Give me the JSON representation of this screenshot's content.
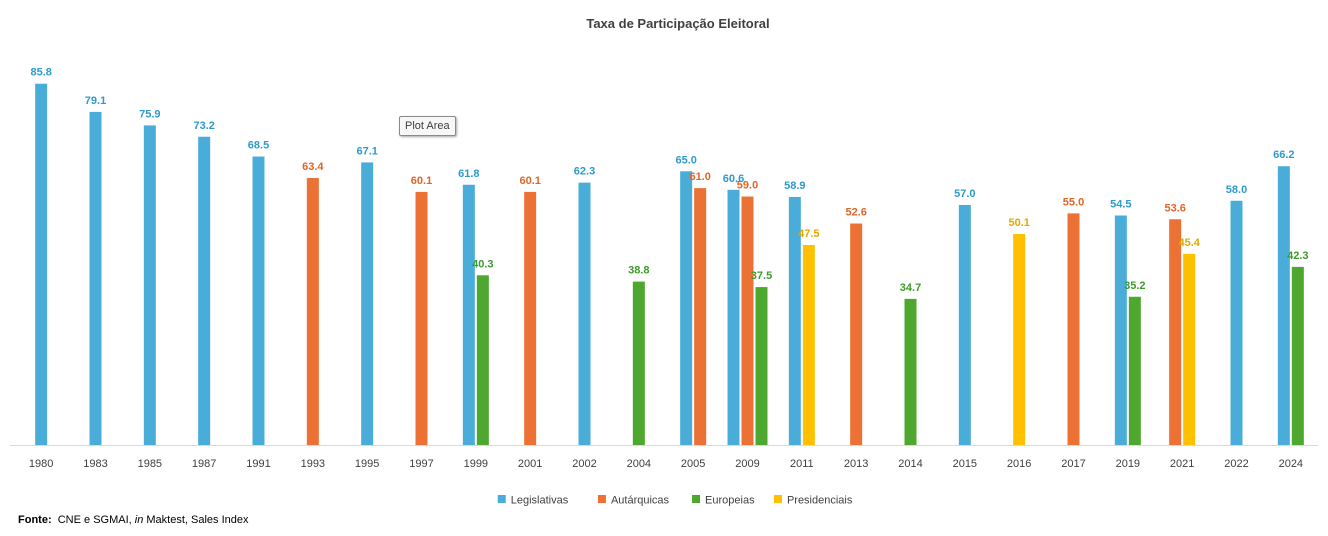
{
  "chart_data": {
    "type": "bar",
    "title": "Taxa de Participação Eleitoral",
    "xlabel": "",
    "ylabel": "",
    "ylim": [
      0,
      90
    ],
    "grid": false,
    "legend_position": "bottom-center",
    "categories": [
      "1980",
      "1983",
      "1985",
      "1987",
      "1991",
      "1993",
      "1995",
      "1997",
      "1999",
      "2001",
      "2002",
      "2004",
      "2005",
      "2009",
      "2011",
      "2013",
      "2014",
      "2015",
      "2016",
      "2017",
      "2019",
      "2021",
      "2022",
      "2024"
    ],
    "series": [
      {
        "name": "Legislativas",
        "color": "#4AADD9",
        "values": [
          85.8,
          79.1,
          75.9,
          73.2,
          68.5,
          null,
          67.1,
          null,
          61.8,
          null,
          62.3,
          null,
          65.0,
          60.6,
          58.9,
          null,
          null,
          57.0,
          null,
          null,
          54.5,
          null,
          58.0,
          66.2
        ]
      },
      {
        "name": "Autárquicas",
        "color": "#EB7134",
        "values": [
          null,
          null,
          null,
          null,
          null,
          63.4,
          null,
          60.1,
          null,
          60.1,
          null,
          null,
          61.0,
          59.0,
          null,
          52.6,
          null,
          null,
          null,
          55.0,
          null,
          53.6,
          null,
          null
        ]
      },
      {
        "name": "Europeias",
        "color": "#4EA72E",
        "values": [
          null,
          null,
          null,
          null,
          null,
          null,
          null,
          null,
          40.3,
          null,
          null,
          38.8,
          null,
          37.5,
          null,
          null,
          34.7,
          null,
          null,
          null,
          35.2,
          null,
          null,
          42.3
        ]
      },
      {
        "name": "Presidenciais",
        "color": "#FFC000",
        "values": [
          null,
          null,
          null,
          null,
          null,
          null,
          null,
          null,
          null,
          null,
          null,
          null,
          null,
          null,
          47.5,
          null,
          null,
          null,
          50.1,
          null,
          null,
          45.4,
          null,
          null
        ]
      }
    ],
    "label_colors": {
      "Legislativas": "#2F9BCB",
      "Autárquicas": "#E0652A",
      "Europeias": "#3E9A2A",
      "Presidenciais": "#E0A800"
    }
  },
  "tooltip": {
    "text": "Plot Area"
  },
  "source": {
    "label": "Fonte:",
    "text_before": "CNE e SGMAI,",
    "italic": "in",
    "text_after": "Maktest, Sales Index"
  }
}
